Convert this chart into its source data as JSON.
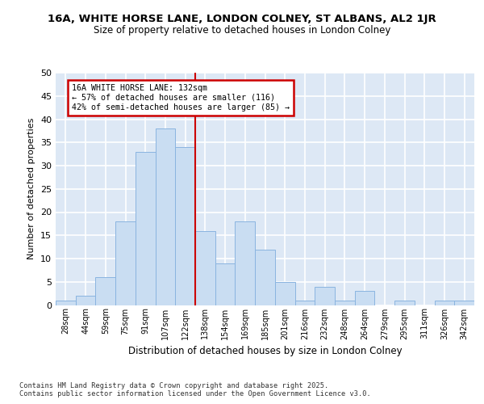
{
  "title1": "16A, WHITE HORSE LANE, LONDON COLNEY, ST ALBANS, AL2 1JR",
  "title2": "Size of property relative to detached houses in London Colney",
  "xlabel": "Distribution of detached houses by size in London Colney",
  "ylabel": "Number of detached properties",
  "bar_labels": [
    "28sqm",
    "44sqm",
    "59sqm",
    "75sqm",
    "91sqm",
    "107sqm",
    "122sqm",
    "138sqm",
    "154sqm",
    "169sqm",
    "185sqm",
    "201sqm",
    "216sqm",
    "232sqm",
    "248sqm",
    "264sqm",
    "279sqm",
    "295sqm",
    "311sqm",
    "326sqm",
    "342sqm"
  ],
  "bar_values": [
    1,
    2,
    6,
    18,
    33,
    38,
    34,
    16,
    9,
    18,
    12,
    5,
    1,
    4,
    1,
    3,
    0,
    1,
    0,
    1,
    1
  ],
  "bar_color": "#c9ddf2",
  "bar_edgecolor": "#8ab4e0",
  "background_color": "#dde8f5",
  "grid_color": "#ffffff",
  "vline_color": "#cc0000",
  "annotation_line1": "16A WHITE HORSE LANE: 132sqm",
  "annotation_line2": "← 57% of detached houses are smaller (116)",
  "annotation_line3": "42% of semi-detached houses are larger (85) →",
  "annotation_box_facecolor": "#ffffff",
  "annotation_box_edgecolor": "#cc0000",
  "ylim": [
    0,
    50
  ],
  "yticks": [
    0,
    5,
    10,
    15,
    20,
    25,
    30,
    35,
    40,
    45,
    50
  ],
  "footnote1": "Contains HM Land Registry data © Crown copyright and database right 2025.",
  "footnote2": "Contains public sector information licensed under the Open Government Licence v3.0."
}
